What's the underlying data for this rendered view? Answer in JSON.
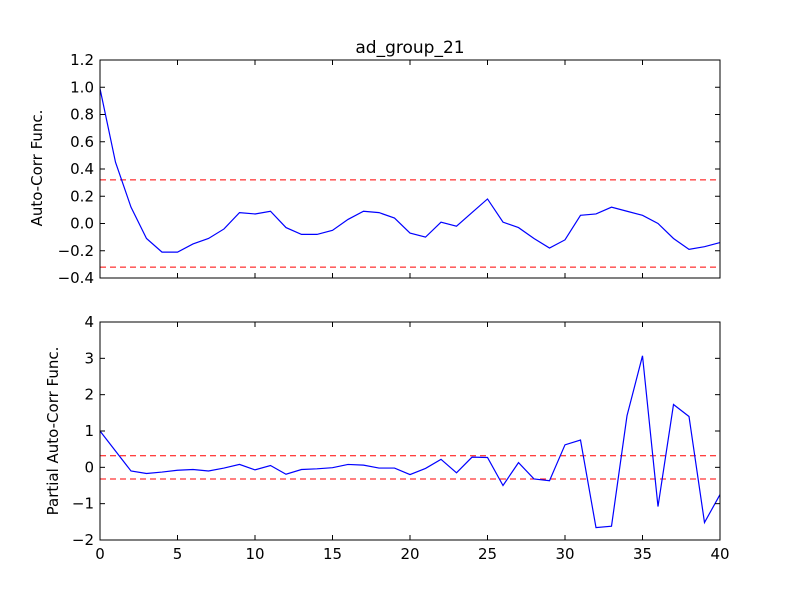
{
  "chart_data": [
    {
      "type": "line",
      "title": "ad_group_21",
      "xlabel": "",
      "ylabel": "Auto-Corr Func.",
      "xlim": [
        0,
        40
      ],
      "ylim": [
        -0.4,
        1.2
      ],
      "yticks": [
        -0.4,
        -0.2,
        0.0,
        0.2,
        0.4,
        0.6,
        0.8,
        1.0,
        1.2
      ],
      "ytick_labels": [
        "−0.4",
        "−0.2",
        "0.0",
        "0.2",
        "0.4",
        "0.6",
        "0.8",
        "1.0",
        "1.2"
      ],
      "xticks": [
        0,
        5,
        10,
        15,
        20,
        25,
        30,
        35,
        40
      ],
      "xtick_labels": [],
      "grid": false,
      "line_color": "#0000ff",
      "threshold_color": "#ff0000",
      "thresholds": [
        0.32,
        -0.32
      ],
      "x": [
        0,
        1,
        2,
        3,
        4,
        5,
        6,
        7,
        8,
        9,
        10,
        11,
        12,
        13,
        14,
        15,
        16,
        17,
        18,
        19,
        20,
        21,
        22,
        23,
        24,
        25,
        26,
        27,
        28,
        29,
        30,
        31,
        32,
        33,
        34,
        35,
        36,
        37,
        38,
        39,
        40
      ],
      "values": [
        0.99,
        0.45,
        0.12,
        -0.11,
        -0.21,
        -0.21,
        -0.15,
        -0.11,
        -0.04,
        0.08,
        0.07,
        0.09,
        -0.03,
        -0.08,
        -0.08,
        -0.05,
        0.03,
        0.09,
        0.08,
        0.04,
        -0.07,
        -0.1,
        0.01,
        -0.02,
        0.08,
        0.18,
        0.01,
        -0.03,
        -0.11,
        -0.18,
        -0.12,
        0.06,
        0.07,
        0.12,
        0.09,
        0.06,
        0.0,
        -0.11,
        -0.19,
        -0.17,
        -0.14
      ]
    },
    {
      "type": "line",
      "title": "",
      "xlabel": "",
      "ylabel": "Partial Auto-Corr Func.",
      "xlim": [
        0,
        40
      ],
      "ylim": [
        -2,
        4
      ],
      "yticks": [
        -2,
        -1,
        0,
        1,
        2,
        3,
        4
      ],
      "ytick_labels": [
        "−2",
        "−1",
        "0",
        "1",
        "2",
        "3",
        "4"
      ],
      "xticks": [
        0,
        5,
        10,
        15,
        20,
        25,
        30,
        35,
        40
      ],
      "xtick_labels": [
        "0",
        "5",
        "10",
        "15",
        "20",
        "25",
        "30",
        "35",
        "40"
      ],
      "grid": false,
      "line_color": "#0000ff",
      "threshold_color": "#ff0000",
      "thresholds": [
        0.32,
        -0.32
      ],
      "x": [
        0,
        1,
        2,
        3,
        4,
        5,
        6,
        7,
        8,
        9,
        10,
        11,
        12,
        13,
        14,
        15,
        16,
        17,
        18,
        19,
        20,
        21,
        22,
        23,
        24,
        25,
        26,
        27,
        28,
        29,
        30,
        31,
        32,
        33,
        34,
        35,
        36,
        37,
        38,
        39,
        40
      ],
      "values": [
        1.0,
        0.45,
        -0.1,
        -0.17,
        -0.13,
        -0.08,
        -0.06,
        -0.1,
        -0.02,
        0.08,
        -0.07,
        0.05,
        -0.19,
        -0.06,
        -0.04,
        -0.01,
        0.08,
        0.06,
        -0.02,
        -0.02,
        -0.2,
        -0.03,
        0.22,
        -0.15,
        0.28,
        0.27,
        -0.5,
        0.13,
        -0.32,
        -0.37,
        0.62,
        0.75,
        -1.66,
        -1.62,
        1.42,
        3.07,
        -1.08,
        1.73,
        1.4,
        -1.52,
        -0.75
      ]
    }
  ]
}
